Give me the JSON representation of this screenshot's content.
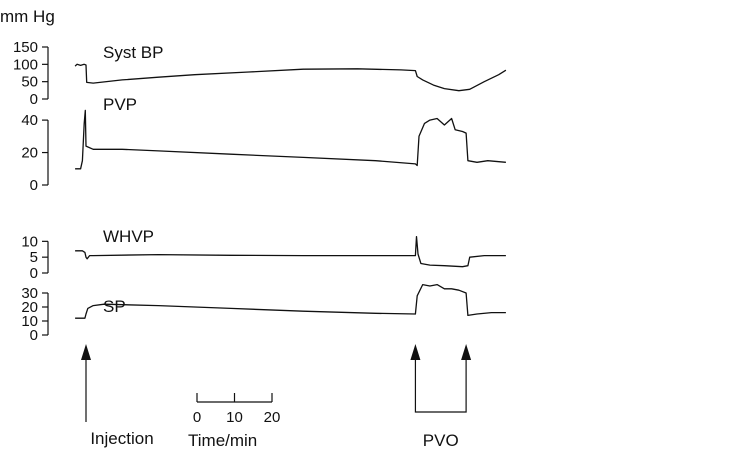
{
  "chart_data": {
    "type": "line",
    "unit_label": "mm Hg",
    "x_unit": "min",
    "panels": [
      {
        "name": "Syst BP",
        "yticks": [
          0,
          50,
          100,
          150
        ],
        "ylim": [
          0,
          150
        ],
        "points": [
          [
            -3,
            95
          ],
          [
            -2.5,
            100
          ],
          [
            -1.5,
            97
          ],
          [
            -0.5,
            100
          ],
          [
            0,
            98
          ],
          [
            0.2,
            48
          ],
          [
            2,
            46
          ],
          [
            10,
            55
          ],
          [
            20,
            63
          ],
          [
            30,
            70
          ],
          [
            45,
            78
          ],
          [
            60,
            86
          ],
          [
            75,
            87
          ],
          [
            87,
            84
          ],
          [
            91,
            82
          ],
          [
            91.5,
            65
          ],
          [
            93,
            55
          ],
          [
            96,
            40
          ],
          [
            99,
            30
          ],
          [
            103,
            24
          ],
          [
            106,
            28
          ],
          [
            110,
            50
          ],
          [
            114,
            70
          ],
          [
            116,
            83
          ]
        ]
      },
      {
        "name": "PVP",
        "yticks": [
          0,
          20,
          40
        ],
        "ylim": [
          0,
          45
        ],
        "points": [
          [
            -3,
            10
          ],
          [
            -1.5,
            10
          ],
          [
            -1,
            15
          ],
          [
            -0.5,
            38
          ],
          [
            -0.2,
            46
          ],
          [
            0,
            24
          ],
          [
            2,
            22
          ],
          [
            10,
            22
          ],
          [
            20,
            21
          ],
          [
            40,
            19
          ],
          [
            60,
            17
          ],
          [
            80,
            15
          ],
          [
            91,
            13
          ],
          [
            91.5,
            12
          ],
          [
            92,
            30
          ],
          [
            93.5,
            38
          ],
          [
            95,
            40
          ],
          [
            97,
            41
          ],
          [
            99,
            37
          ],
          [
            101,
            41
          ],
          [
            102,
            34
          ],
          [
            104,
            33
          ],
          [
            105,
            32
          ],
          [
            105.5,
            15
          ],
          [
            108,
            14
          ],
          [
            111,
            15
          ],
          [
            116,
            14
          ]
        ]
      },
      {
        "name": "WHVP",
        "yticks": [
          0,
          5,
          10
        ],
        "ylim": [
          0,
          12
        ],
        "points": [
          [
            -3,
            7
          ],
          [
            -1,
            7
          ],
          [
            -0.3,
            6.5
          ],
          [
            0,
            5
          ],
          [
            0.3,
            4.5
          ],
          [
            1,
            5.5
          ],
          [
            2,
            5.5
          ],
          [
            20,
            5.8
          ],
          [
            40,
            5.6
          ],
          [
            60,
            5.5
          ],
          [
            80,
            5.5
          ],
          [
            91,
            5.5
          ],
          [
            91.3,
            11.5
          ],
          [
            91.7,
            6
          ],
          [
            92.5,
            3
          ],
          [
            95,
            2.5
          ],
          [
            99,
            2.3
          ],
          [
            104,
            2
          ],
          [
            105.5,
            2.3
          ],
          [
            106,
            5
          ],
          [
            110,
            5.5
          ],
          [
            116,
            5.5
          ]
        ]
      },
      {
        "name": "SP",
        "yticks": [
          0,
          10,
          20,
          30
        ],
        "ylim": [
          0,
          35
        ],
        "points": [
          [
            -3,
            12
          ],
          [
            -0.3,
            12
          ],
          [
            0,
            15
          ],
          [
            0.5,
            19
          ],
          [
            2,
            21
          ],
          [
            5,
            22
          ],
          [
            20,
            21
          ],
          [
            40,
            19
          ],
          [
            60,
            17
          ],
          [
            80,
            15.5
          ],
          [
            91,
            15
          ],
          [
            91.5,
            28
          ],
          [
            93,
            36
          ],
          [
            95,
            35
          ],
          [
            97,
            36
          ],
          [
            99,
            33
          ],
          [
            101,
            33
          ],
          [
            103,
            32
          ],
          [
            105,
            30
          ],
          [
            105.5,
            14
          ],
          [
            108,
            15
          ],
          [
            112,
            16
          ],
          [
            116,
            16
          ]
        ]
      }
    ],
    "annotations": [
      {
        "label": "Injection",
        "x": 0
      },
      {
        "label": "PVO",
        "x_start": 91,
        "x_end": 105
      }
    ],
    "scale_bar": {
      "ticks": [
        "0",
        "10",
        "20"
      ],
      "values": [
        0,
        10,
        20
      ],
      "label": "Time/min"
    }
  }
}
